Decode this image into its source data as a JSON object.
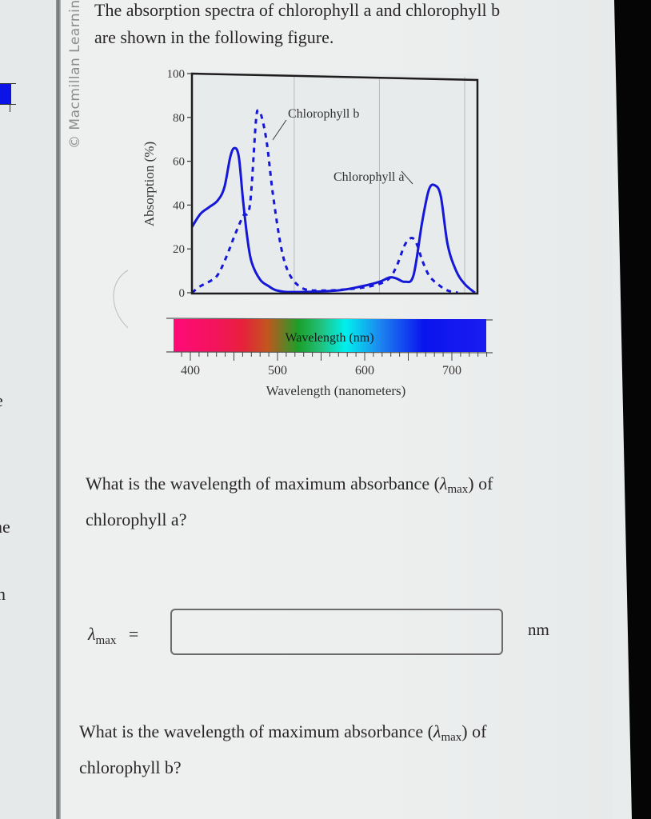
{
  "intro_text": {
    "line1": "The absorption spectra of chlorophyll a and chlorophyll b",
    "line2": "are shown in the following figure."
  },
  "watermark": "© Macmillan Learning",
  "left_page_fragments": [
    "e",
    "ne",
    "n"
  ],
  "chart_data": {
    "type": "line",
    "title": "",
    "xlabel": "Wavelength (nanometers)",
    "ylabel": "Absorption (%)",
    "xlim": [
      380,
      715
    ],
    "ylim": [
      0,
      100
    ],
    "yticks": [
      0,
      20,
      40,
      60,
      80,
      100
    ],
    "xticks": [
      400,
      500,
      600,
      700
    ],
    "grid": "vertical lines at ~500, ~600, ~700 nm",
    "spectrum_bar_label": "Wavelength (nm)",
    "spectrum_bar_colors": [
      "#ff0a78",
      "#e8203c",
      "#c24a20",
      "#1aa02a",
      "#00f0ee",
      "#1d7cf0",
      "#0a14ee",
      "#1a1cf0"
    ],
    "series": [
      {
        "name": "Chlorophyll a",
        "style": "solid",
        "color": "#1518d6",
        "x": [
          380,
          390,
          400,
          410,
          418,
          425,
          430,
          435,
          440,
          445,
          450,
          460,
          470,
          480,
          500,
          550,
          580,
          600,
          612,
          620,
          630,
          640,
          650,
          658,
          665,
          672,
          680,
          690,
          700,
          712
        ],
        "values": [
          30,
          36,
          39,
          42,
          48,
          62,
          66,
          62,
          42,
          25,
          14,
          6,
          3,
          1,
          0.3,
          1,
          3,
          5,
          7,
          6.5,
          5,
          8,
          32,
          47,
          49,
          44,
          22,
          10,
          4,
          0
        ]
      },
      {
        "name": "Chlorophyll b",
        "style": "dashed",
        "color": "#1518d6",
        "x": [
          380,
          390,
          400,
          410,
          420,
          430,
          440,
          448,
          455,
          458,
          462,
          468,
          475,
          485,
          495,
          510,
          530,
          560,
          590,
          610,
          620,
          630,
          638,
          644,
          650,
          658,
          668,
          680,
          692
        ],
        "values": [
          0,
          3,
          5,
          8,
          16,
          26,
          35,
          40,
          78,
          83,
          80,
          68,
          45,
          20,
          8,
          2,
          1,
          1.5,
          3,
          6,
          12,
          22,
          25,
          22,
          15,
          8,
          4,
          1,
          0
        ]
      }
    ],
    "annotations": [
      {
        "text": "Chlorophyll b",
        "points_to": "Chlorophyll b peak near 460 nm"
      },
      {
        "text": "Chlorophyll a",
        "points_to": "Chlorophyll a peak near 665 nm"
      }
    ]
  },
  "questions": [
    {
      "text_before": "What is the wavelength of maximum absorbance (",
      "symbol": "λ",
      "subscript": "max",
      "text_after": ") of",
      "line2": "chlorophyll a?"
    },
    {
      "text_before": "What is the wavelength of maximum absorbance (",
      "symbol": "λ",
      "subscript": "max",
      "text_after": ") of",
      "line2": "chlorophyll b?"
    }
  ],
  "answer_a": {
    "symbol": "λ",
    "subscript": "max",
    "equals": "=",
    "value": "",
    "placeholder": "",
    "unit": "nm"
  }
}
